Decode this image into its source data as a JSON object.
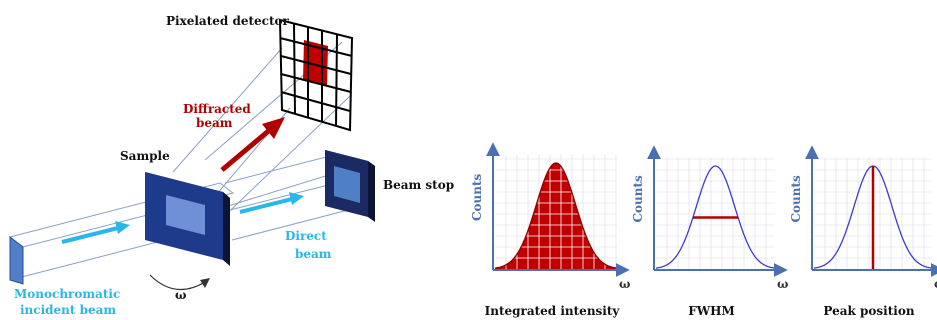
{
  "experiment": {
    "detector_label": "Pixelated detector",
    "diffracted_label_line1": "Diffracted",
    "diffracted_label_line2": "beam",
    "sample_label": "Sample",
    "beam_stop_label": "Beam stop",
    "direct_label_line1": "Direct",
    "direct_label_line2": "beam",
    "incident_label_line1": "Monochromatic",
    "incident_label_line2": "incident beam",
    "rotation_symbol": "ω"
  },
  "plots": [
    {
      "id": "integrated",
      "caption": "Integrated intensity",
      "ylabel": "Counts",
      "xlabel": "ω",
      "feature": "filled-area"
    },
    {
      "id": "fwhm",
      "caption": "FWHM",
      "ylabel": "Counts",
      "xlabel": "ω",
      "feature": "half-max-line"
    },
    {
      "id": "peak",
      "caption": "Peak position",
      "ylabel": "Counts",
      "xlabel": "ω",
      "feature": "peak-line"
    }
  ],
  "colors": {
    "dark_blue": "#1b2a63",
    "sample_face": "#1e3a8a",
    "inner_face": "#6f8fd6",
    "red": "#b00000",
    "cyan": "#29b6e8",
    "axis": "#4b6fb0",
    "curve": "#3b3bd6",
    "grid": "#d9dce6"
  }
}
